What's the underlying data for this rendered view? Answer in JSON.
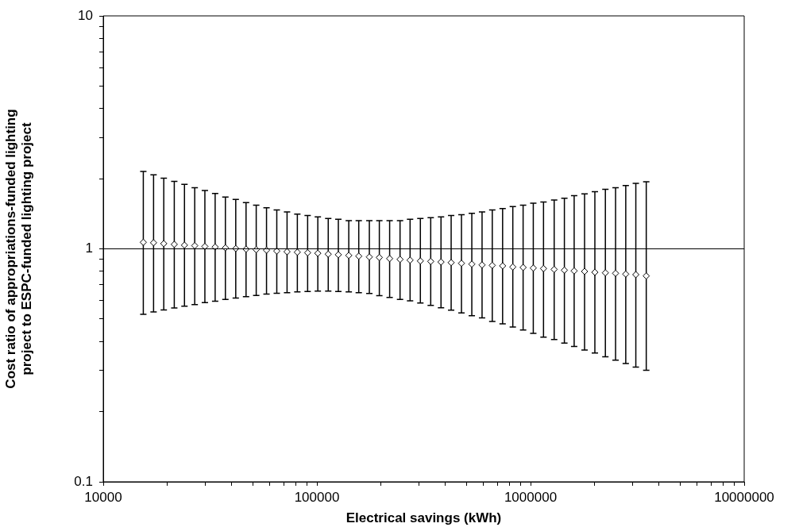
{
  "chart_data": {
    "type": "scatter",
    "xlabel": "Electrical savings (kWh)",
    "ylabel": "Cost ratio of appropriations-funded lighting\nproject to ESPC-funded lighting project",
    "log": "xy",
    "ref_lines": [
      {
        "axis": "y",
        "value": 1,
        "color": "#000000"
      }
    ],
    "grid": false,
    "legend": false,
    "marker": "diamond",
    "xlim": [
      10000,
      10000000
    ],
    "ylim": [
      0.1,
      10
    ],
    "xticks": [
      10000,
      {
        "value": 20000,
        "label": null
      },
      {
        "value": 30000,
        "label": null
      },
      {
        "value": 40000,
        "label": null
      },
      {
        "value": 50000,
        "label": null
      },
      {
        "value": 60000,
        "label": null
      },
      {
        "value": 70000,
        "label": null
      },
      {
        "value": 80000,
        "label": null
      },
      {
        "value": 90000,
        "label": null
      },
      100000,
      {
        "value": 200000,
        "label": null
      },
      {
        "value": 300000,
        "label": null
      },
      {
        "value": 400000,
        "label": null
      },
      {
        "value": 500000,
        "label": null
      },
      {
        "value": 600000,
        "label": null
      },
      {
        "value": 700000,
        "label": null
      },
      {
        "value": 800000,
        "label": null
      },
      {
        "value": 900000,
        "label": null
      },
      1000000,
      {
        "value": 2000000,
        "label": null
      },
      {
        "value": 3000000,
        "label": null
      },
      {
        "value": 4000000,
        "label": null
      },
      {
        "value": 5000000,
        "label": null
      },
      {
        "value": 6000000,
        "label": null
      },
      {
        "value": 7000000,
        "label": null
      },
      {
        "value": 8000000,
        "label": null
      },
      {
        "value": 9000000,
        "label": null
      },
      10000000
    ],
    "yticks": [
      0.1,
      {
        "value": 0.2,
        "label": null
      },
      {
        "value": 0.3,
        "label": null
      },
      {
        "value": 0.4,
        "label": null
      },
      {
        "value": 0.5,
        "label": null
      },
      {
        "value": 0.6,
        "label": null
      },
      {
        "value": 0.7,
        "label": null
      },
      {
        "value": 0.8,
        "label": null
      },
      {
        "value": 0.9,
        "label": null
      },
      1,
      {
        "value": 2,
        "label": null
      },
      {
        "value": 3,
        "label": null
      },
      {
        "value": 4,
        "label": null
      },
      {
        "value": 5,
        "label": null
      },
      {
        "value": 6,
        "label": null
      },
      {
        "value": 7,
        "label": null
      },
      {
        "value": 8,
        "label": null
      },
      {
        "value": 9,
        "label": null
      },
      10
    ],
    "series": [
      {
        "color": "#000000",
        "x": [
          15400,
          17200,
          19200,
          21500,
          24000,
          26800,
          29900,
          33400,
          37300,
          41700,
          46600,
          52000,
          58100,
          64900,
          72500,
          81000,
          90500,
          101000,
          113000,
          126000,
          141000,
          157000,
          176000,
          196000,
          219000,
          245000,
          273000,
          305000,
          341000,
          381000,
          425000,
          475000,
          531000,
          593000,
          662000,
          740000,
          826000,
          923000,
          1030000,
          1150000,
          1290000,
          1440000,
          1600000,
          1790000,
          2000000,
          2240000,
          2500000,
          2790000,
          3110000,
          3480000
        ],
        "values": [
          1.067,
          1.062,
          1.053,
          1.045,
          1.037,
          1.032,
          1.024,
          1.018,
          1.01,
          1.003,
          0.997,
          0.992,
          0.987,
          0.979,
          0.972,
          0.967,
          0.962,
          0.957,
          0.949,
          0.944,
          0.937,
          0.93,
          0.923,
          0.918,
          0.908,
          0.901,
          0.894,
          0.887,
          0.883,
          0.878,
          0.873,
          0.867,
          0.86,
          0.853,
          0.849,
          0.845,
          0.836,
          0.832,
          0.827,
          0.823,
          0.816,
          0.81,
          0.804,
          0.8,
          0.793,
          0.789,
          0.785,
          0.779,
          0.775,
          0.765
        ],
        "errors": [
          [
            0.524,
            2.15
          ],
          [
            0.536,
            2.08
          ],
          [
            0.547,
            2.01
          ],
          [
            0.557,
            1.95
          ],
          [
            0.567,
            1.89
          ],
          [
            0.576,
            1.83
          ],
          [
            0.588,
            1.78
          ],
          [
            0.596,
            1.73
          ],
          [
            0.607,
            1.67
          ],
          [
            0.615,
            1.63
          ],
          [
            0.623,
            1.58
          ],
          [
            0.631,
            1.54
          ],
          [
            0.639,
            1.5
          ],
          [
            0.644,
            1.47
          ],
          [
            0.648,
            1.44
          ],
          [
            0.653,
            1.41
          ],
          [
            0.656,
            1.39
          ],
          [
            0.658,
            1.37
          ],
          [
            0.658,
            1.35
          ],
          [
            0.656,
            1.34
          ],
          [
            0.653,
            1.32
          ],
          [
            0.648,
            1.32
          ],
          [
            0.643,
            1.32
          ],
          [
            0.629,
            1.32
          ],
          [
            0.618,
            1.32
          ],
          [
            0.607,
            1.32
          ],
          [
            0.598,
            1.34
          ],
          [
            0.585,
            1.35
          ],
          [
            0.572,
            1.36
          ],
          [
            0.558,
            1.37
          ],
          [
            0.546,
            1.39
          ],
          [
            0.531,
            1.4
          ],
          [
            0.516,
            1.42
          ],
          [
            0.505,
            1.44
          ],
          [
            0.488,
            1.47
          ],
          [
            0.476,
            1.49
          ],
          [
            0.462,
            1.52
          ],
          [
            0.448,
            1.54
          ],
          [
            0.434,
            1.57
          ],
          [
            0.418,
            1.59
          ],
          [
            0.408,
            1.62
          ],
          [
            0.394,
            1.65
          ],
          [
            0.381,
            1.69
          ],
          [
            0.368,
            1.72
          ],
          [
            0.357,
            1.76
          ],
          [
            0.344,
            1.8
          ],
          [
            0.333,
            1.83
          ],
          [
            0.322,
            1.87
          ],
          [
            0.311,
            1.91
          ],
          [
            0.301,
            1.94
          ]
        ]
      }
    ]
  }
}
